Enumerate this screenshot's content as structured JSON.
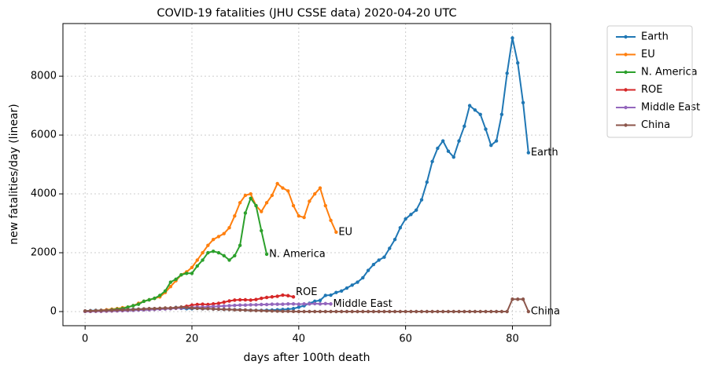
{
  "chart_data": {
    "type": "line",
    "title": "COVID-19 fatalities (JHU CSSE data) 2020-04-20 UTC",
    "xlabel": "days after 100th death",
    "ylabel": "new fatalities/day (linear)",
    "x": [
      0,
      1,
      2,
      3,
      4,
      5,
      6,
      7,
      8,
      9,
      10,
      11,
      12,
      13,
      14,
      15,
      16,
      17,
      18,
      19,
      20,
      21,
      22,
      23,
      24,
      25,
      26,
      27,
      28,
      29,
      30,
      31,
      32,
      33,
      34,
      35,
      36,
      37,
      38,
      39,
      40,
      41,
      42,
      43,
      44,
      45,
      46,
      47,
      48,
      49,
      50,
      51,
      52,
      53,
      54,
      55,
      56,
      57,
      58,
      59,
      60,
      61,
      62,
      63,
      64,
      65,
      66,
      67,
      68,
      69,
      70,
      71,
      72,
      73,
      74,
      75,
      76,
      77,
      78,
      79,
      80,
      81,
      82,
      83
    ],
    "xlim": [
      -4.15,
      87.15
    ],
    "xticks": [
      0,
      20,
      40,
      60,
      80
    ],
    "ylim": [
      -480,
      9790
    ],
    "yticks": [
      0,
      2000,
      4000,
      6000,
      8000
    ],
    "grid": true,
    "legend": "outside right",
    "series": [
      {
        "name": "Earth",
        "color": "#1f77b4",
        "values": [
          20,
          30,
          40,
          45,
          50,
          55,
          60,
          65,
          70,
          75,
          80,
          85,
          90,
          95,
          100,
          100,
          105,
          140,
          110,
          100,
          100,
          110,
          95,
          100,
          90,
          80,
          75,
          70,
          65,
          60,
          50,
          45,
          40,
          40,
          45,
          50,
          60,
          70,
          80,
          100,
          150,
          200,
          280,
          350,
          380,
          550,
          560,
          650,
          700,
          800,
          900,
          1000,
          1150,
          1400,
          1600,
          1750,
          1850,
          2150,
          2450,
          2850,
          3150,
          3300,
          3450,
          3800,
          4400,
          5100,
          5550,
          5800,
          5450,
          5250,
          5800,
          6300,
          7000,
          6850,
          6700,
          6200,
          5650,
          5800,
          6700,
          8100,
          9300,
          8450,
          7100,
          5400
        ]
      },
      {
        "name": "EU",
        "color": "#ff7f0e",
        "values": [
          10,
          20,
          30,
          40,
          60,
          80,
          100,
          130,
          150,
          200,
          280,
          350,
          400,
          450,
          500,
          650,
          850,
          1050,
          1250,
          1350,
          1500,
          1750,
          2000,
          2250,
          2450,
          2550,
          2650,
          2850,
          3250,
          3700,
          3950,
          4000,
          3600,
          3400,
          3700,
          3950,
          4350,
          4200,
          4100,
          3600,
          3250,
          3200,
          3750,
          4000,
          4200,
          3600,
          3100,
          2700,
          null,
          null,
          null,
          null,
          null,
          null,
          null,
          null,
          null,
          null,
          null,
          null,
          null,
          null,
          null,
          null,
          null,
          null,
          null,
          null,
          null,
          null,
          null,
          null,
          null,
          null,
          null,
          null,
          null,
          null,
          null,
          null,
          null,
          null,
          null,
          null
        ]
      },
      {
        "name": "N. America",
        "color": "#2ca02c",
        "values": [
          5,
          10,
          15,
          25,
          40,
          60,
          80,
          100,
          150,
          200,
          250,
          350,
          400,
          450,
          550,
          700,
          1000,
          1100,
          1250,
          1300,
          1300,
          1550,
          1750,
          2000,
          2050,
          2000,
          1900,
          1750,
          1900,
          2250,
          3350,
          3850,
          3600,
          2750,
          1950,
          null,
          null,
          null,
          null,
          null,
          null,
          null,
          null,
          null,
          null,
          null,
          null,
          null,
          null,
          null,
          null,
          null,
          null,
          null,
          null,
          null,
          null,
          null,
          null,
          null,
          null,
          null,
          null,
          null,
          null,
          null,
          null,
          null,
          null,
          null,
          null,
          null,
          null,
          null,
          null,
          null,
          null,
          null,
          null,
          null,
          null,
          null,
          null,
          null
        ]
      },
      {
        "name": "ROE",
        "color": "#d62728",
        "values": [
          5,
          5,
          10,
          10,
          15,
          20,
          25,
          30,
          40,
          50,
          60,
          70,
          80,
          90,
          100,
          110,
          120,
          130,
          150,
          180,
          220,
          240,
          250,
          240,
          260,
          280,
          320,
          360,
          390,
          400,
          400,
          390,
          410,
          450,
          480,
          500,
          520,
          560,
          540,
          500,
          null,
          null,
          null,
          null,
          null,
          null,
          null,
          null,
          null,
          null,
          null,
          null,
          null,
          null,
          null,
          null,
          null,
          null,
          null,
          null,
          null,
          null,
          null,
          null,
          null,
          null,
          null,
          null,
          null,
          null,
          null,
          null,
          null,
          null,
          null,
          null,
          null,
          null,
          null,
          null,
          null,
          null,
          null,
          null
        ]
      },
      {
        "name": "Middle East",
        "color": "#9467bd",
        "values": [
          5,
          5,
          10,
          10,
          15,
          20,
          25,
          30,
          35,
          40,
          50,
          55,
          60,
          70,
          80,
          90,
          100,
          110,
          120,
          130,
          140,
          150,
          150,
          160,
          170,
          180,
          190,
          200,
          210,
          220,
          220,
          230,
          230,
          240,
          240,
          250,
          250,
          250,
          260,
          260,
          250,
          260,
          260,
          270,
          260,
          270,
          260,
          null,
          null,
          null,
          null,
          null,
          null,
          null,
          null,
          null,
          null,
          null,
          null,
          null,
          null,
          null,
          null,
          null,
          null,
          null,
          null,
          null,
          null,
          null,
          null,
          null,
          null,
          null,
          null,
          null,
          null,
          null,
          null,
          null,
          null,
          null,
          null,
          null
        ]
      },
      {
        "name": "China",
        "color": "#8c564b",
        "values": [
          20,
          25,
          30,
          35,
          40,
          45,
          55,
          60,
          65,
          70,
          80,
          90,
          100,
          100,
          110,
          120,
          120,
          130,
          150,
          140,
          120,
          110,
          100,
          100,
          90,
          80,
          75,
          70,
          60,
          55,
          50,
          40,
          35,
          30,
          25,
          20,
          15,
          10,
          10,
          5,
          0,
          0,
          0,
          0,
          0,
          0,
          0,
          0,
          0,
          0,
          0,
          0,
          0,
          0,
          0,
          0,
          0,
          0,
          0,
          0,
          0,
          0,
          0,
          0,
          0,
          0,
          0,
          0,
          0,
          0,
          0,
          0,
          0,
          0,
          0,
          0,
          0,
          0,
          0,
          0,
          420,
          420,
          420,
          0
        ]
      }
    ]
  }
}
